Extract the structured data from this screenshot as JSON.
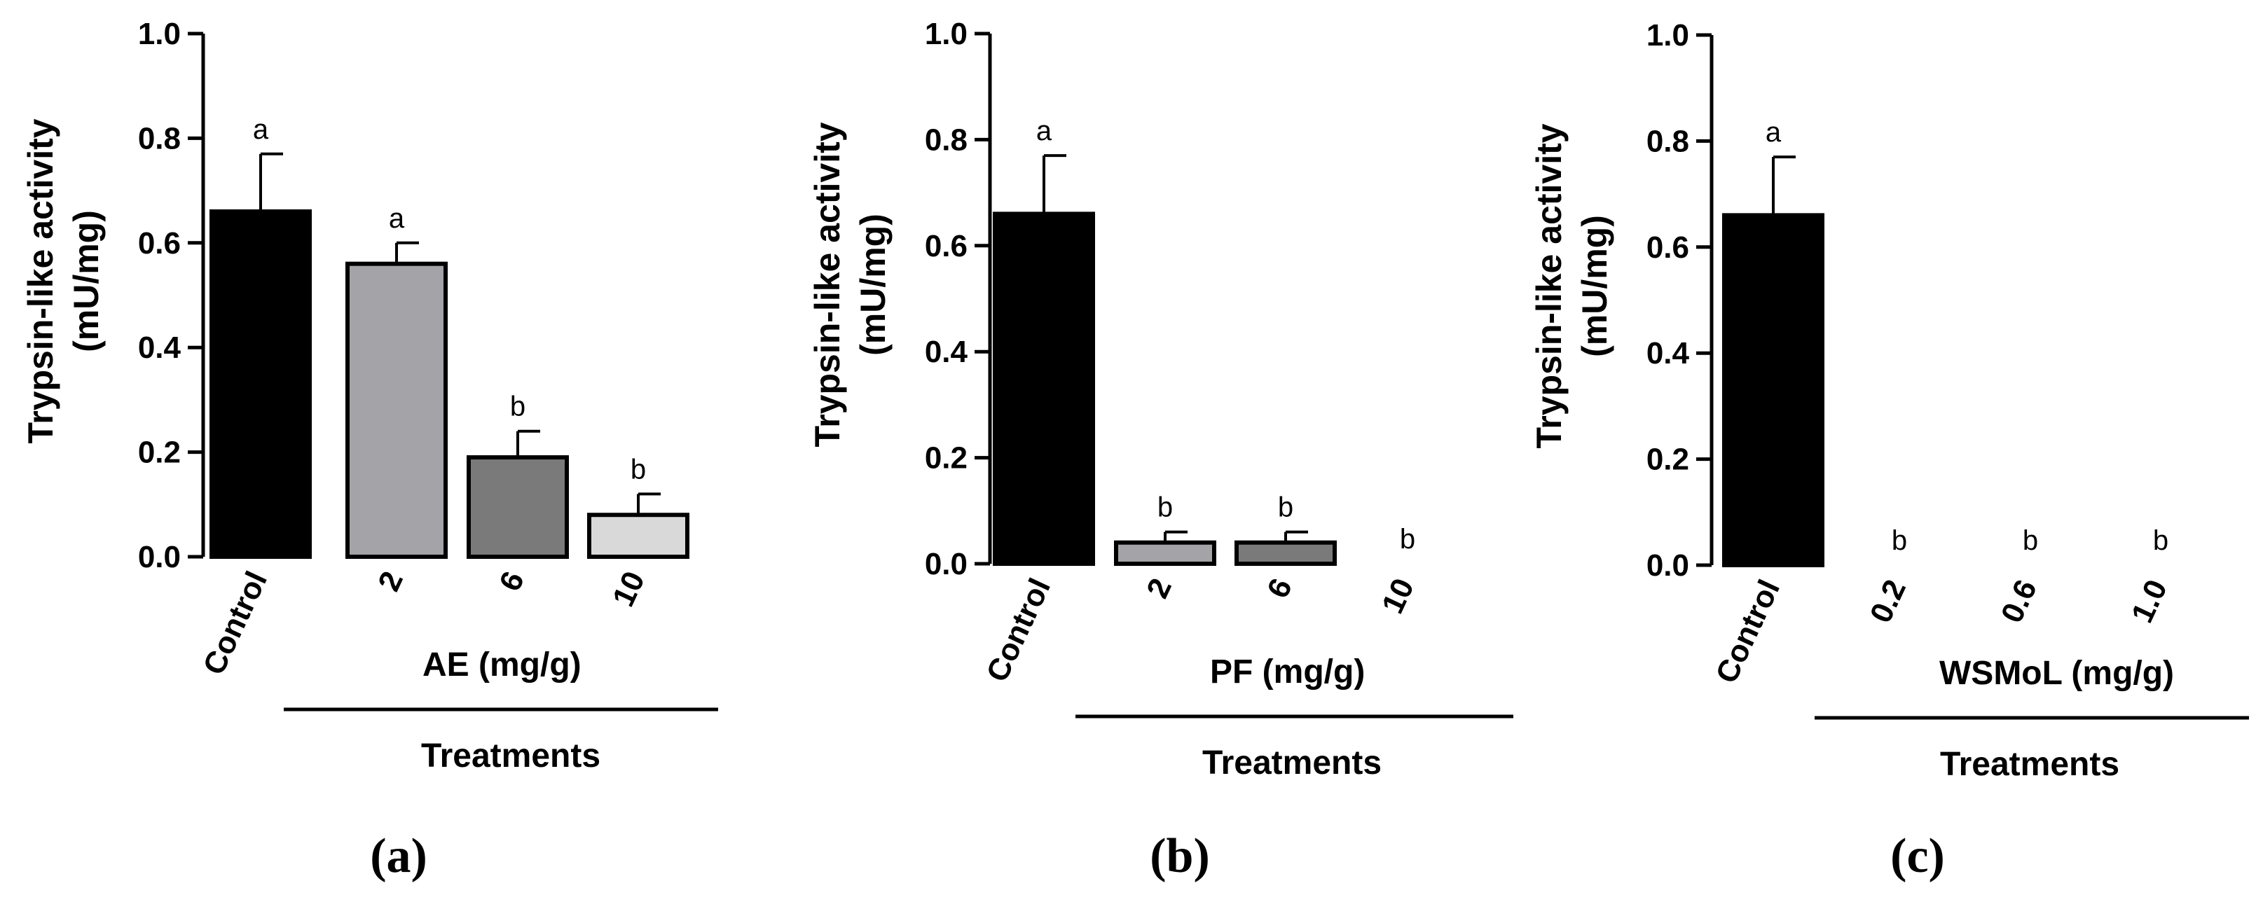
{
  "chart_data": [
    {
      "type": "bar",
      "panel_label": "(a)",
      "ylabel_line1": "Trypsin-like activity",
      "ylabel_line2": "(mU/mg)",
      "xgroup_label": "AE (mg/g)",
      "treatments_label": "Treatments",
      "ylim": [
        0,
        1.0
      ],
      "yticks": [
        "0.0",
        "0.2",
        "0.4",
        "0.6",
        "0.8",
        "1.0"
      ],
      "categories": [
        "Control",
        "2",
        "6",
        "10"
      ],
      "values": [
        0.66,
        0.56,
        0.19,
        0.08
      ],
      "errors": [
        0.11,
        0.04,
        0.05,
        0.04
      ],
      "significance": [
        "a",
        "a",
        "b",
        "b"
      ],
      "colors": [
        "#000000",
        "#a3a3a8",
        "#7a7a7a",
        "#d9d9d9"
      ]
    },
    {
      "type": "bar",
      "panel_label": "(b)",
      "ylabel_line1": "Trypsin-like activity",
      "ylabel_line2": "(mU/mg)",
      "xgroup_label": "PF (mg/g)",
      "treatments_label": "Treatments",
      "ylim": [
        0,
        1.0
      ],
      "yticks": [
        "0.0",
        "0.2",
        "0.4",
        "0.6",
        "0.8",
        "1.0"
      ],
      "categories": [
        "Control",
        "2",
        "6",
        "10"
      ],
      "values": [
        0.66,
        0.04,
        0.04,
        0.0
      ],
      "errors": [
        0.11,
        0.02,
        0.02,
        0.0
      ],
      "significance": [
        "a",
        "b",
        "b",
        "b"
      ],
      "colors": [
        "#000000",
        "#a3a3a8",
        "#7a7a7a",
        "#d9d9d9"
      ]
    },
    {
      "type": "bar",
      "panel_label": "(c)",
      "ylabel_line1": "Trypsin-like activity",
      "ylabel_line2": "(mU/mg)",
      "xgroup_label": "WSMoL (mg/g)",
      "treatments_label": "Treatments",
      "ylim": [
        0,
        1.0
      ],
      "yticks": [
        "0.0",
        "0.2",
        "0.4",
        "0.6",
        "0.8",
        "1.0"
      ],
      "categories": [
        "Control",
        "0.2",
        "0.6",
        "1.0"
      ],
      "values": [
        0.66,
        0.0,
        0.0,
        0.0
      ],
      "errors": [
        0.11,
        0.0,
        0.0,
        0.0
      ],
      "significance": [
        "a",
        "b",
        "b",
        "b"
      ],
      "colors": [
        "#000000",
        "#a3a3a8",
        "#7a7a7a",
        "#d9d9d9"
      ]
    }
  ]
}
